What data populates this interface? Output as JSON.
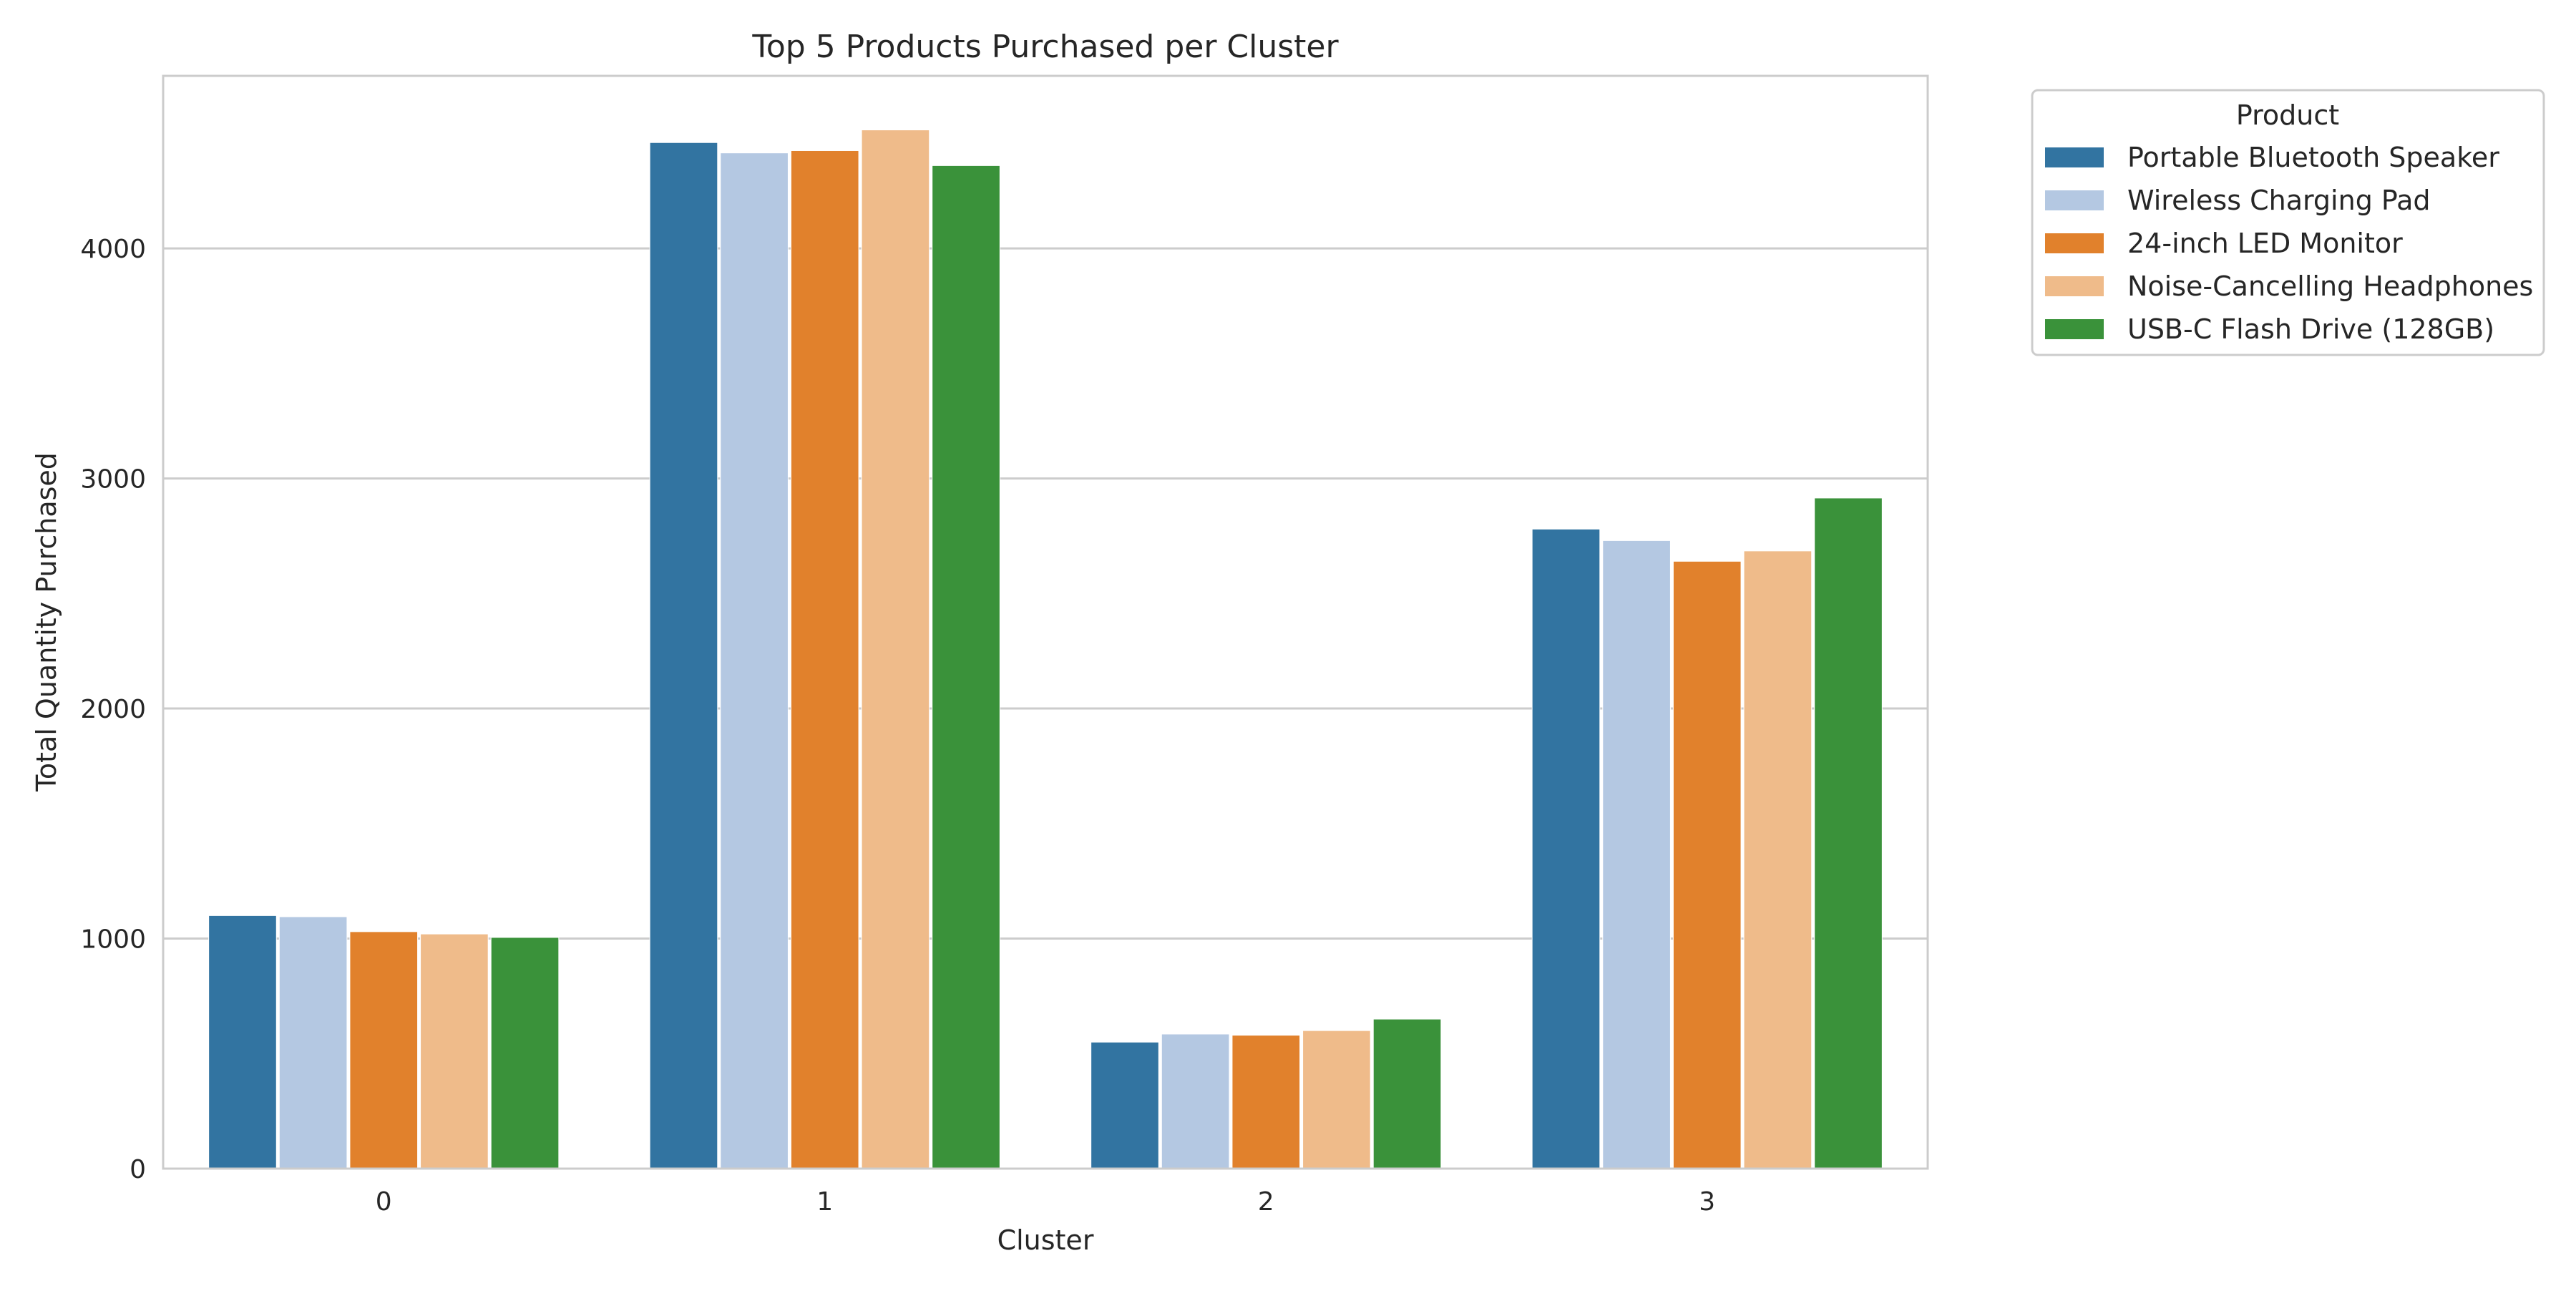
{
  "chart_data": {
    "type": "bar",
    "title": "Top 5 Products Purchased per Cluster",
    "xlabel": "Cluster",
    "ylabel": "Total Quantity Purchased",
    "categories": [
      "0",
      "1",
      "2",
      "3"
    ],
    "ylim": [
      0,
      4750
    ],
    "yticks": [
      0,
      1000,
      2000,
      3000,
      4000
    ],
    "grid": true,
    "legend": {
      "title": "Product",
      "placement": "outside-top-right"
    },
    "series": [
      {
        "name": "Portable Bluetooth Speaker",
        "color": "#3274a1",
        "values": [
          1100,
          4460,
          550,
          2780
        ]
      },
      {
        "name": "Wireless Charging Pad",
        "color": "#b4c8e2",
        "values": [
          1095,
          4415,
          585,
          2730
        ]
      },
      {
        "name": "24-inch LED Monitor",
        "color": "#e1812c",
        "values": [
          1030,
          4425,
          580,
          2640
        ]
      },
      {
        "name": "Noise-Cancelling Headphones",
        "color": "#efbb8a",
        "values": [
          1020,
          4515,
          600,
          2685
        ]
      },
      {
        "name": "USB-C Flash Drive (128GB)",
        "color": "#3a923a",
        "values": [
          1005,
          4360,
          650,
          2915
        ]
      }
    ]
  }
}
